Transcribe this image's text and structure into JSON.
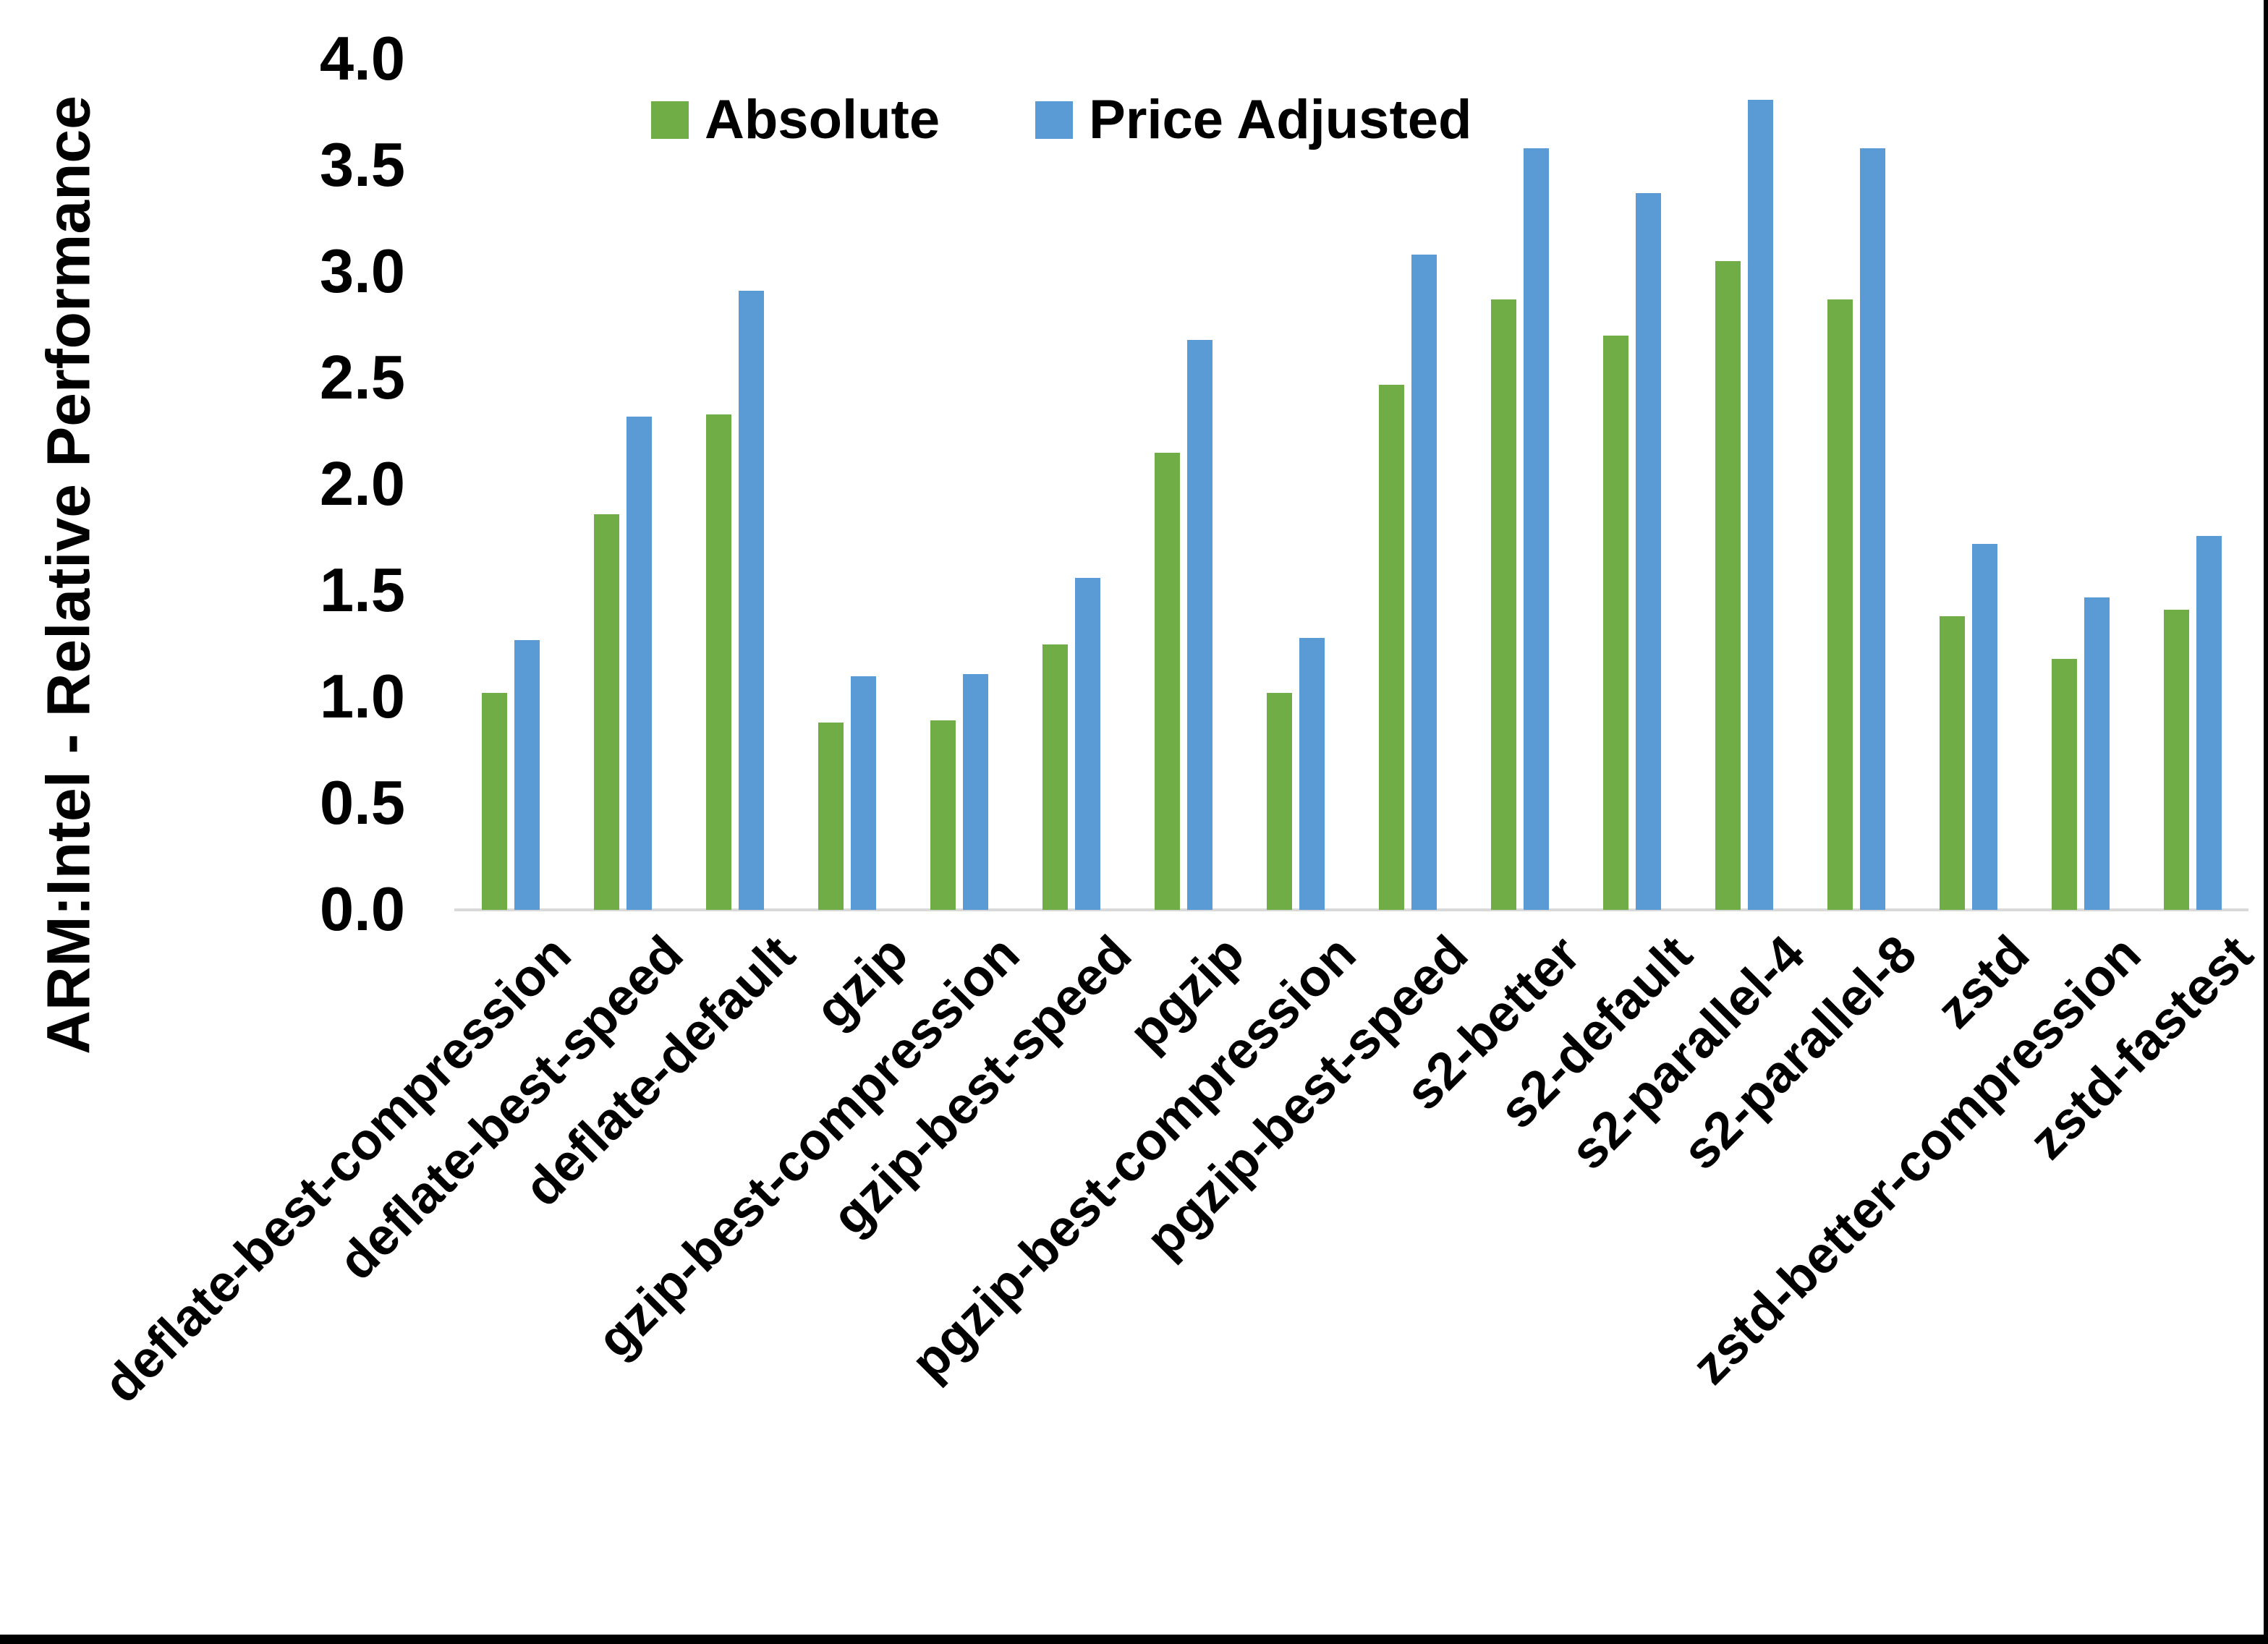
{
  "figure": {
    "background": "#FFFFFF",
    "frame_border_color": "#000000"
  },
  "chart_data": {
    "type": "bar",
    "title": "",
    "xlabel": "",
    "ylabel": "ARM:Intel - Relative Performance",
    "ylim": [
      0.0,
      4.0
    ],
    "ytick_step": 0.5,
    "yticks": [
      "0.0",
      "0.5",
      "1.0",
      "1.5",
      "2.0",
      "2.5",
      "3.0",
      "3.5",
      "4.0"
    ],
    "grid": false,
    "legend_position": "top",
    "axis_line_color": "#D9D9D9",
    "text_color": "#000000",
    "categories": [
      "deflate-best-compression",
      "deflate-best-speed",
      "deflate-default",
      "gzip",
      "gzip-best-compression",
      "gzip-best-speed",
      "pgzip",
      "pgzip-best-compression",
      "pgzip-best-speed",
      "s2-better",
      "s2-default",
      "s2-parallel-4",
      "s2-parallel-8",
      "zstd",
      "zstd-better-compression",
      "zstd-fastest"
    ],
    "series": [
      {
        "name": "Absolute",
        "color": "#70AD47",
        "values": [
          1.02,
          1.86,
          2.33,
          0.88,
          0.89,
          1.25,
          2.15,
          1.02,
          2.47,
          2.87,
          2.7,
          3.05,
          2.87,
          1.38,
          1.18,
          1.41
        ]
      },
      {
        "name": "Price Adjusted",
        "color": "#5B9BD5",
        "values": [
          1.27,
          2.32,
          2.91,
          1.1,
          1.11,
          1.56,
          2.68,
          1.28,
          3.08,
          3.58,
          3.37,
          3.81,
          3.58,
          1.72,
          1.47,
          1.76
        ]
      }
    ]
  }
}
